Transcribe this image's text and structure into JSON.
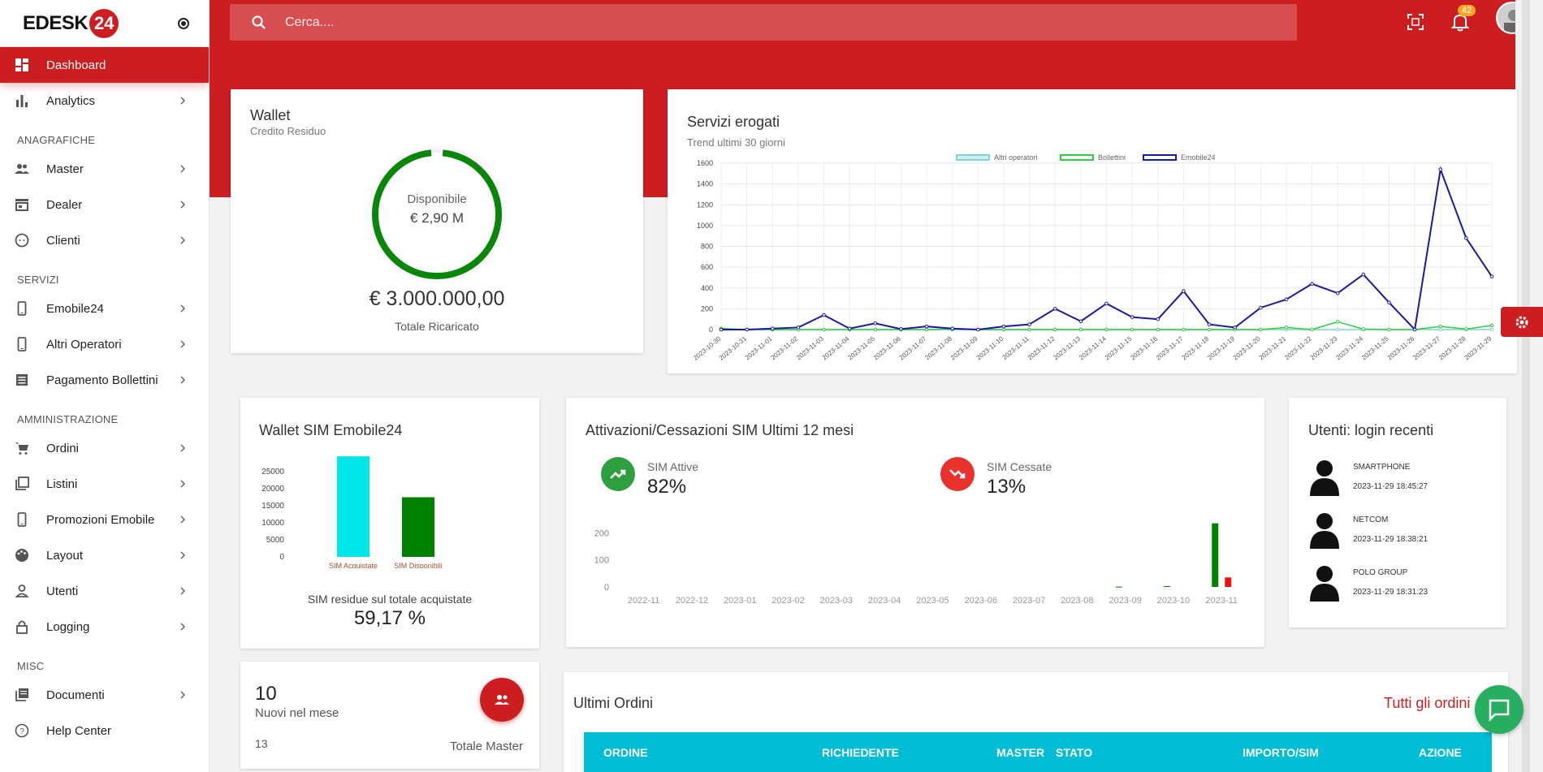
{
  "logo": {
    "text": "EDESK",
    "badge": "24"
  },
  "sidebar": {
    "items": [
      {
        "label": "Dashboard"
      },
      {
        "label": "Analytics"
      }
    ],
    "sections": [
      {
        "title": "ANAGRAFICHE",
        "items": [
          {
            "label": "Master"
          },
          {
            "label": "Dealer"
          },
          {
            "label": "Clienti"
          }
        ]
      },
      {
        "title": "SERVIZI",
        "items": [
          {
            "label": "Emobile24"
          },
          {
            "label": "Altri Operatori"
          },
          {
            "label": "Pagamento Bollettini"
          }
        ]
      },
      {
        "title": "AMMINISTRAZIONE",
        "items": [
          {
            "label": "Ordini"
          },
          {
            "label": "Listini"
          },
          {
            "label": "Promozioni Emobile"
          },
          {
            "label": "Layout"
          },
          {
            "label": "Utenti"
          },
          {
            "label": "Logging"
          }
        ]
      },
      {
        "title": "MISC",
        "items": [
          {
            "label": "Documenti"
          },
          {
            "label": "Help Center"
          }
        ]
      }
    ]
  },
  "header": {
    "search_placeholder": "Cerca....",
    "notifications_count": "42"
  },
  "wallet": {
    "title": "Wallet",
    "subtitle": "Credito Residuo",
    "ring_label": "Disponibile",
    "ring_value": "€ 2,90 M",
    "ring_fraction": 0.97,
    "total": "€ 3.000.000,00",
    "total_label": "Totale Ricaricato"
  },
  "servizi": {
    "title": "Servizi erogati",
    "subtitle": "Trend ultimi 30 giorni"
  },
  "sim_wallet": {
    "title": "Wallet SIM Emobile24",
    "caption": "SIM residue sul totale acquistate",
    "percent": "59,17 %"
  },
  "activations": {
    "title": "Attivazioni/Cessazioni SIM Ultimi 12 mesi",
    "active_label": "SIM Attive",
    "active_value": "82%",
    "ceased_label": "SIM Cessate",
    "ceased_value": "13%"
  },
  "recent_logins": {
    "title": "Utenti: login recenti",
    "users": [
      {
        "name": "SMARTPHONE",
        "time": "2023-11-29 18:45:27"
      },
      {
        "name": "NETCOM",
        "time": "2023-11-29 18:38:21"
      },
      {
        "name": "POLO GROUP",
        "time": "2023-11-29 18:31:23"
      }
    ]
  },
  "master_card": {
    "new_count": "10",
    "new_label": "Nuovi nel mese",
    "total_count": "13",
    "total_label": "Totale Master"
  },
  "orders": {
    "title": "Ultimi Ordini",
    "link": "Tutti gli ordini",
    "columns": [
      "ORDINE",
      "RICHIEDENTE",
      "MASTER",
      "STATO",
      "IMPORTO/SIM",
      "AZIONE"
    ]
  },
  "colors": {
    "brand_red": "#cc1d21",
    "cyan": "#00bcd4",
    "green": "#008000",
    "navy": "#1a1a9e"
  },
  "chart_data": [
    {
      "type": "line",
      "title": "",
      "legend": [
        "Altri operatori",
        "Bollettini",
        "Emobile24"
      ],
      "x": [
        "2023-10-30",
        "2023-10-31",
        "2023-11-01",
        "2023-11-02",
        "2023-11-03",
        "2023-11-04",
        "2023-11-05",
        "2023-11-06",
        "2023-11-07",
        "2023-11-08",
        "2023-11-09",
        "2023-11-10",
        "2023-11-11",
        "2023-11-12",
        "2023-11-13",
        "2023-11-14",
        "2023-11-15",
        "2023-11-16",
        "2023-11-17",
        "2023-11-18",
        "2023-11-19",
        "2023-11-20",
        "2023-11-21",
        "2023-11-22",
        "2023-11-23",
        "2023-11-24",
        "2023-11-25",
        "2023-11-26",
        "2023-11-27",
        "2023-11-28",
        "2023-11-29"
      ],
      "yticks": [
        0,
        200,
        400,
        600,
        800,
        1000,
        1200,
        1400,
        1600
      ],
      "ylim": [
        0,
        1600
      ],
      "series": [
        {
          "name": "Altri operatori",
          "color": "#7fd3d8",
          "values": [
            0,
            0,
            0,
            0,
            0,
            0,
            0,
            0,
            0,
            0,
            0,
            0,
            0,
            0,
            0,
            0,
            0,
            0,
            0,
            0,
            0,
            0,
            0,
            0,
            0,
            0,
            0,
            0,
            0,
            0,
            0
          ]
        },
        {
          "name": "Bollettini",
          "color": "#2ecc40",
          "values": [
            10,
            0,
            0,
            0,
            0,
            0,
            0,
            0,
            0,
            5,
            0,
            0,
            0,
            0,
            0,
            0,
            0,
            0,
            0,
            0,
            0,
            0,
            20,
            0,
            75,
            5,
            0,
            0,
            30,
            5,
            40
          ]
        },
        {
          "name": "Emobile24",
          "color": "#1a1a9e",
          "values": [
            0,
            0,
            10,
            20,
            140,
            10,
            60,
            5,
            30,
            10,
            0,
            30,
            50,
            200,
            80,
            250,
            120,
            100,
            370,
            50,
            20,
            210,
            290,
            440,
            350,
            530,
            260,
            0,
            1540,
            880,
            510
          ]
        }
      ]
    },
    {
      "type": "bar",
      "categories": [
        "SIM Acquistate",
        "SIM Disponibili"
      ],
      "values": [
        29500,
        17500
      ],
      "colors": [
        "#00e5e5",
        "#008000"
      ],
      "yticks": [
        0,
        5000,
        10000,
        15000,
        20000,
        25000
      ],
      "ylim": [
        0,
        30000
      ]
    },
    {
      "type": "bar",
      "categories": [
        "2022-11",
        "2022-12",
        "2023-01",
        "2023-02",
        "2023-03",
        "2023-04",
        "2023-05",
        "2023-06",
        "2023-07",
        "2023-08",
        "2023-09",
        "2023-10",
        "2023-11"
      ],
      "series": [
        {
          "name": "SIM Attive",
          "color": "#008000",
          "values": [
            0,
            0,
            0,
            0,
            0,
            0,
            0,
            0,
            0,
            0,
            1,
            3,
            235
          ]
        },
        {
          "name": "SIM Cessate",
          "color": "#ee1111",
          "values": [
            0,
            0,
            0,
            0,
            0,
            0,
            0,
            0,
            0,
            0,
            0,
            0,
            35
          ]
        }
      ],
      "yticks": [
        0,
        100,
        200
      ],
      "ylim": [
        0,
        240
      ]
    }
  ]
}
